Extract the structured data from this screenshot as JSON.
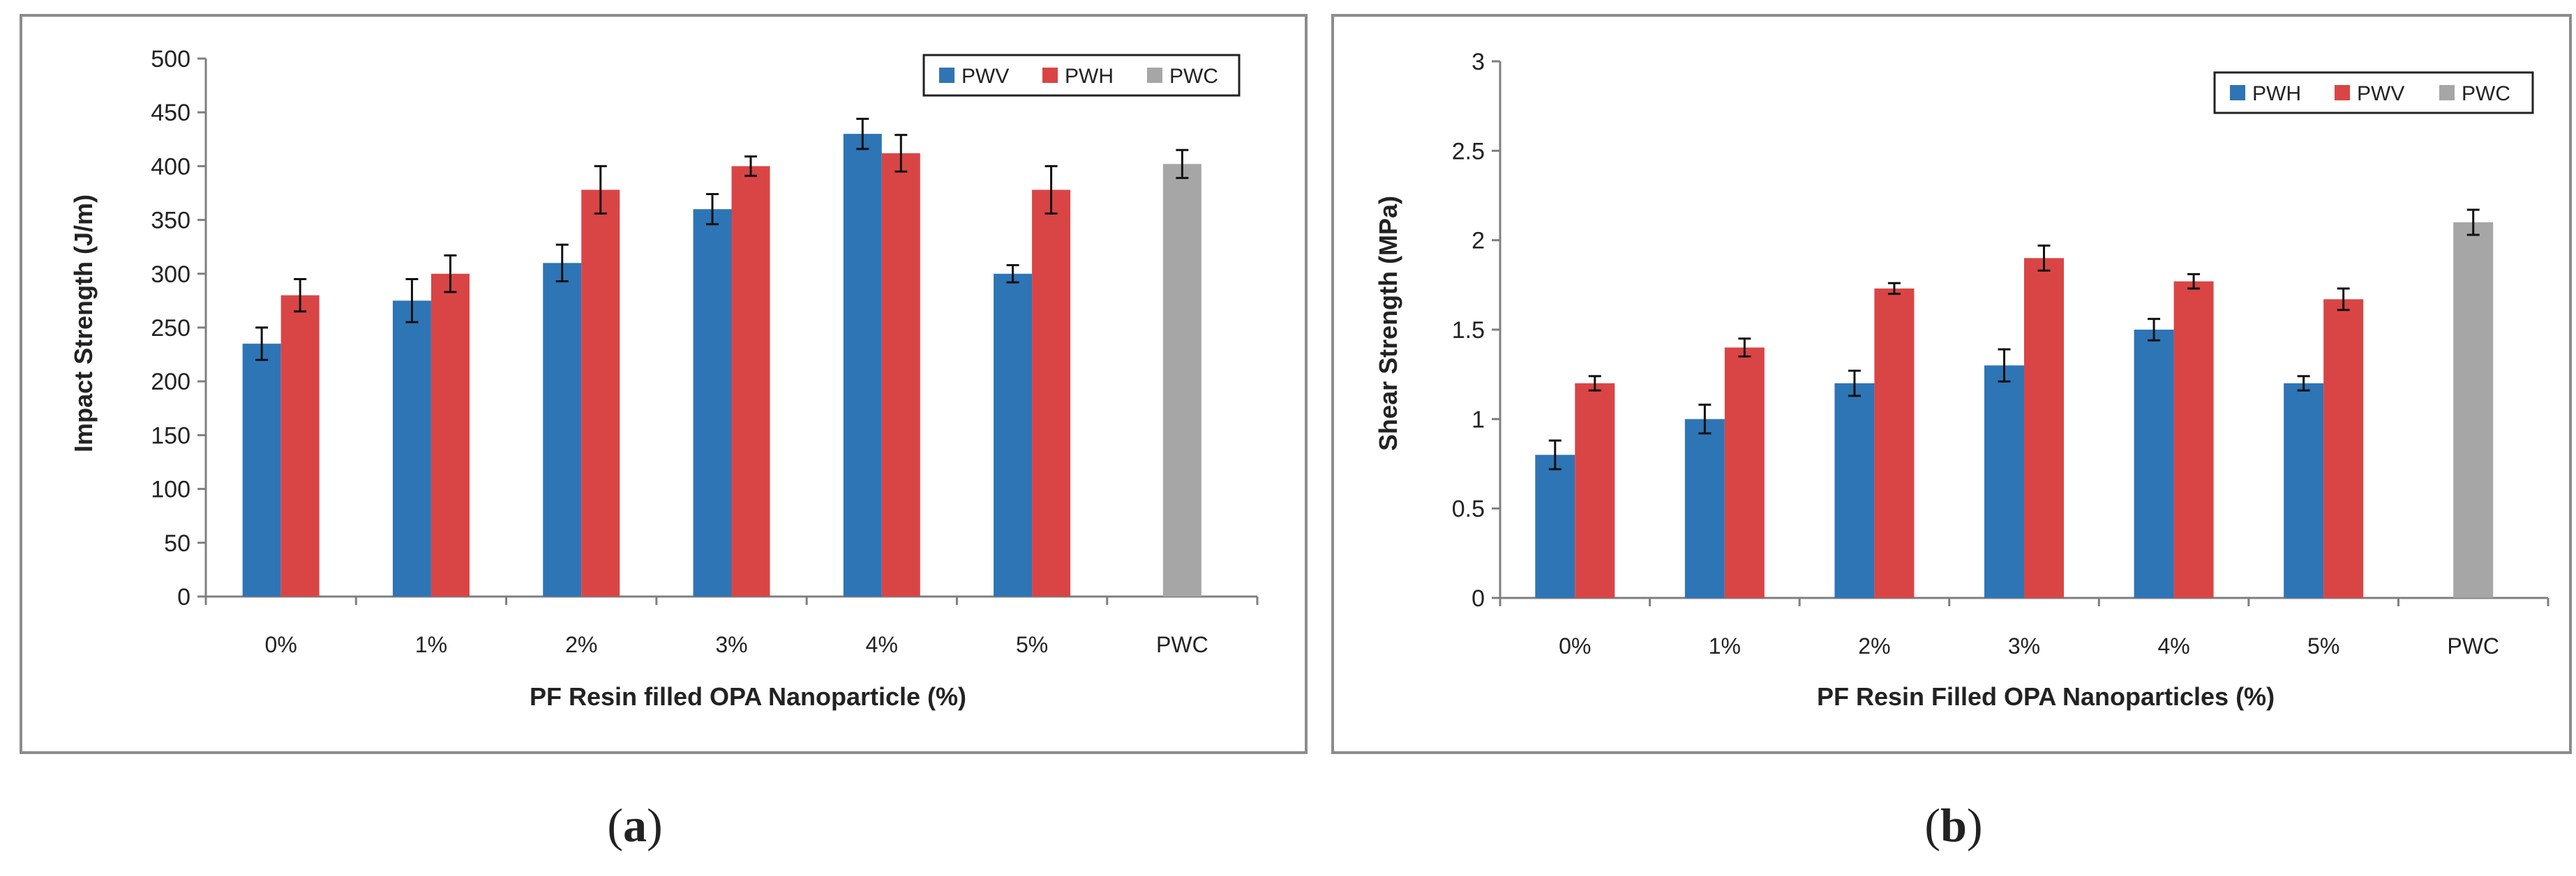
{
  "chart_data": [
    {
      "id": "a",
      "type": "bar",
      "title": "",
      "xlabel": "PF Resin filled OPA Nanoparticle (%)",
      "ylabel": "Impact Strength (J/m)",
      "ylim": [
        0,
        500
      ],
      "yticks": [
        "0",
        "50",
        "100",
        "150",
        "200",
        "250",
        "300",
        "350",
        "400",
        "450",
        "500"
      ],
      "ytick_values": [
        0,
        50,
        100,
        150,
        200,
        250,
        300,
        350,
        400,
        450,
        500
      ],
      "categories": [
        "0%",
        "1%",
        "2%",
        "3%",
        "4%",
        "5%",
        "PWC"
      ],
      "legend": [
        "PWV",
        "PWH",
        "PWC"
      ],
      "legend_position": "top-right",
      "grid": false,
      "series": [
        {
          "name": "PWV",
          "color": "#2e75b6",
          "values": [
            235,
            275,
            310,
            360,
            430,
            300,
            null
          ],
          "errors": [
            15,
            20,
            17,
            14,
            14,
            8,
            null
          ]
        },
        {
          "name": "PWH",
          "color": "#d94545",
          "values": [
            280,
            300,
            378,
            400,
            412,
            378,
            null
          ],
          "errors": [
            15,
            17,
            22,
            9,
            17,
            22,
            null
          ]
        },
        {
          "name": "PWC",
          "color": "#a6a6a6",
          "values": [
            null,
            null,
            null,
            null,
            null,
            null,
            402
          ],
          "errors": [
            null,
            null,
            null,
            null,
            null,
            null,
            13
          ]
        }
      ]
    },
    {
      "id": "b",
      "type": "bar",
      "title": "",
      "xlabel": "PF Resin Filled OPA Nanoparticles (%)",
      "ylabel": "Shear Strength (MPa)",
      "ylim": [
        0,
        3
      ],
      "yticks": [
        "0",
        "0.5",
        "1",
        "1.5",
        "2",
        "2.5",
        "3"
      ],
      "ytick_values": [
        0,
        0.5,
        1,
        1.5,
        2,
        2.5,
        3
      ],
      "categories": [
        "0%",
        "1%",
        "2%",
        "3%",
        "4%",
        "5%",
        "PWC"
      ],
      "legend": [
        "PWH",
        "PWV",
        "PWC"
      ],
      "legend_position": "top-right",
      "grid": false,
      "series": [
        {
          "name": "PWH",
          "color": "#2e75b6",
          "values": [
            0.8,
            1.0,
            1.2,
            1.3,
            1.5,
            1.2,
            null
          ],
          "errors": [
            0.08,
            0.08,
            0.07,
            0.09,
            0.06,
            0.04,
            null
          ]
        },
        {
          "name": "PWV",
          "color": "#d94545",
          "values": [
            1.2,
            1.4,
            1.73,
            1.9,
            1.77,
            1.67,
            null
          ],
          "errors": [
            0.04,
            0.05,
            0.03,
            0.07,
            0.04,
            0.06,
            null
          ]
        },
        {
          "name": "PWC",
          "color": "#a6a6a6",
          "values": [
            null,
            null,
            null,
            null,
            null,
            null,
            2.1
          ],
          "errors": [
            null,
            null,
            null,
            null,
            null,
            null,
            0.07
          ]
        }
      ]
    }
  ],
  "captions": {
    "a_open": "(",
    "a_letter": "a",
    "a_close": ")",
    "b_open": "(",
    "b_letter": "b",
    "b_close": ")"
  }
}
